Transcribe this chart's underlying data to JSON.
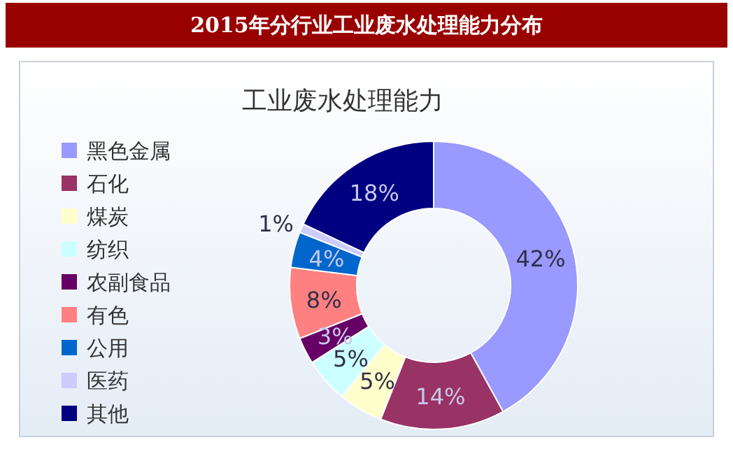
{
  "chart_data": {
    "type": "donut",
    "title": "2015年分行业工业废水处理能力分布",
    "subtitle": "工业废水处理能力",
    "categories": [
      "黑色金属",
      "石化",
      "煤炭",
      "纺织",
      "农副食品",
      "有色",
      "公用",
      "医药",
      "其他"
    ],
    "values": [
      42,
      14,
      5,
      5,
      3,
      8,
      4,
      1,
      18
    ],
    "colors": [
      "#9999ff",
      "#993366",
      "#ffffcc",
      "#ccffff",
      "#660066",
      "#ff8080",
      "#0066cc",
      "#ccccff",
      "#000080"
    ],
    "value_labels": [
      "42%",
      "14%",
      "5%",
      "5%",
      "3%",
      "8%",
      "4%",
      "1%",
      "18%"
    ],
    "legend": "left"
  }
}
